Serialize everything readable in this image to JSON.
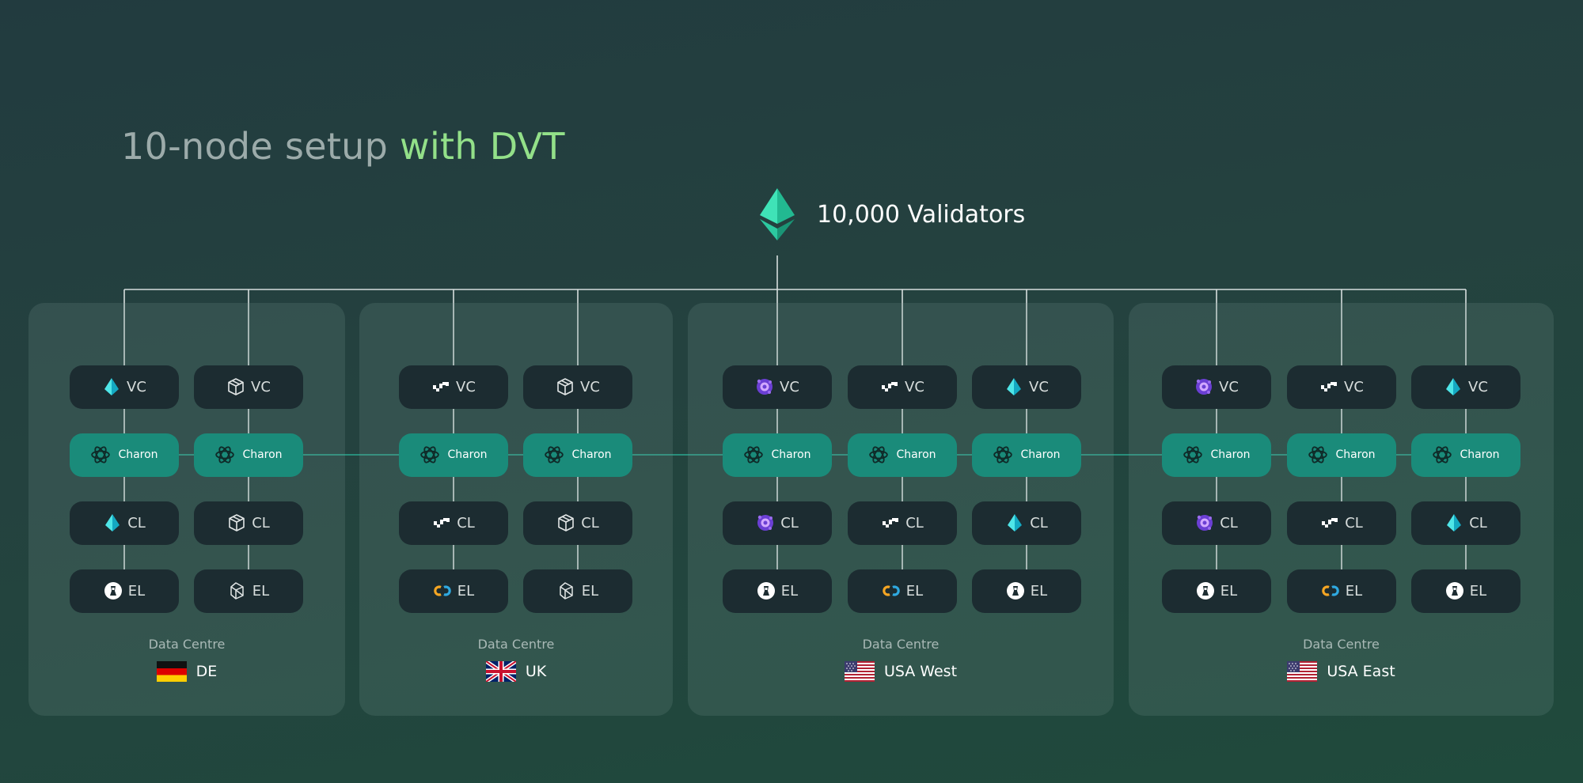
{
  "title": {
    "prefix": "10-node setup ",
    "accent": "with DVT"
  },
  "top_node": {
    "label": "10,000 Validators",
    "icon": "ethereum-icon"
  },
  "colors": {
    "accent_green": "#93e089",
    "charon_teal": "#1a8b7a",
    "node_dark": "#1c2c31",
    "eth": "#2fd4a8"
  },
  "row_labels": {
    "vc": "VC",
    "charon": "Charon",
    "cl": "CL",
    "el": "EL"
  },
  "data_centres": [
    {
      "label": "Data Centre",
      "country": "DE",
      "flag": "de",
      "nodes": [
        {
          "vc": "lighthouse",
          "cl": "lighthouse",
          "el": "erigon"
        },
        {
          "vc": "teku",
          "cl": "teku",
          "el": "besu"
        }
      ]
    },
    {
      "label": "Data Centre",
      "country": "UK",
      "flag": "uk",
      "nodes": [
        {
          "vc": "nimbus",
          "cl": "nimbus",
          "el": "nethermind"
        },
        {
          "vc": "teku",
          "cl": "teku",
          "el": "besu"
        }
      ]
    },
    {
      "label": "Data Centre",
      "country": "USA West",
      "flag": "us",
      "nodes": [
        {
          "vc": "lodestar",
          "cl": "lodestar",
          "el": "erigon"
        },
        {
          "vc": "nimbus",
          "cl": "nimbus",
          "el": "nethermind"
        },
        {
          "vc": "lighthouse",
          "cl": "lighthouse",
          "el": "erigon"
        }
      ]
    },
    {
      "label": "Data Centre",
      "country": "USA East",
      "flag": "us",
      "nodes": [
        {
          "vc": "lodestar",
          "cl": "lodestar",
          "el": "erigon"
        },
        {
          "vc": "nimbus",
          "cl": "nimbus",
          "el": "nethermind"
        },
        {
          "vc": "lighthouse",
          "cl": "lighthouse",
          "el": "erigon"
        }
      ]
    }
  ]
}
